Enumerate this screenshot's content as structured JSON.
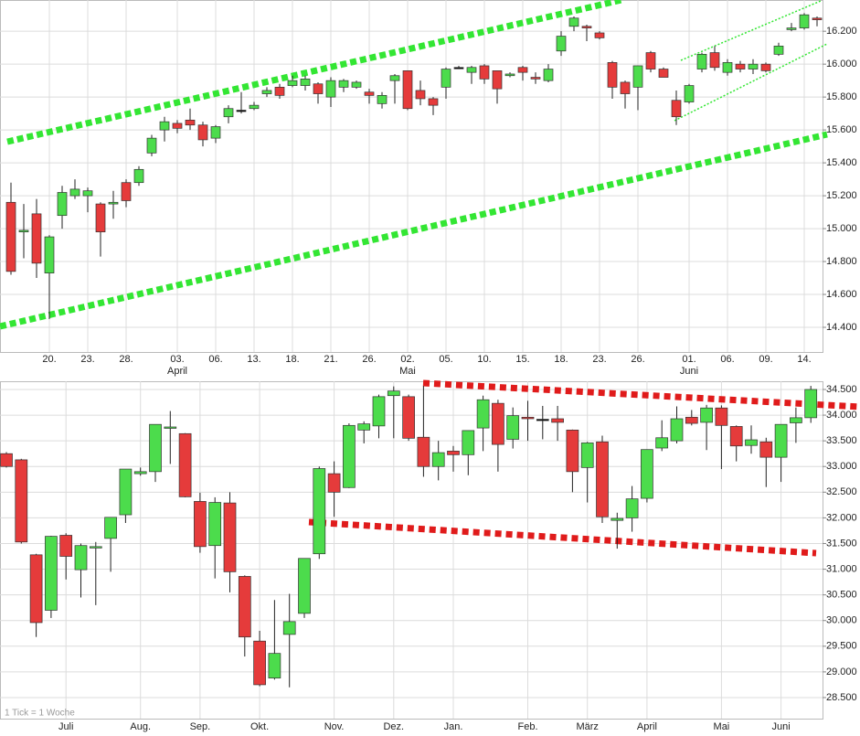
{
  "chart_data": [
    {
      "type": "candlestick",
      "categories": [
        null,
        null,
        null,
        "20.",
        null,
        null,
        "23.",
        null,
        null,
        "28.",
        null,
        null,
        null,
        "03.",
        null,
        null,
        "06.",
        null,
        null,
        "13.",
        null,
        null,
        "18.",
        null,
        null,
        "21.",
        null,
        null,
        "26.",
        null,
        null,
        "02.",
        null,
        null,
        "05.",
        null,
        null,
        "10.",
        null,
        null,
        "15.",
        null,
        null,
        "18.",
        null,
        null,
        "23.",
        null,
        null,
        "26.",
        null,
        null,
        null,
        "01.",
        null,
        null,
        "06.",
        null,
        null,
        "09.",
        null,
        null,
        "14.",
        null
      ],
      "category_groups": [
        null,
        null,
        null,
        null,
        null,
        null,
        null,
        null,
        null,
        null,
        null,
        null,
        null,
        "April",
        null,
        null,
        null,
        null,
        null,
        null,
        null,
        null,
        null,
        null,
        null,
        null,
        null,
        null,
        null,
        null,
        null,
        "Mai",
        null,
        null,
        null,
        null,
        null,
        null,
        null,
        null,
        null,
        null,
        null,
        null,
        null,
        null,
        null,
        null,
        null,
        null,
        null,
        null,
        null,
        "Juni",
        null,
        null,
        null,
        null,
        null,
        null,
        null,
        null,
        null,
        null
      ],
      "open": [
        15160,
        14980,
        15090,
        14730,
        15080,
        15200,
        15200,
        15150,
        15150,
        15280,
        15280,
        15460,
        15600,
        15640,
        15660,
        15630,
        15550,
        15680,
        15720,
        15730,
        15820,
        15860,
        15870,
        15870,
        15880,
        15800,
        15860,
        15860,
        15830,
        15760,
        15900,
        15960,
        15840,
        15790,
        15860,
        15980,
        15950,
        15990,
        15960,
        15930,
        15980,
        15920,
        15900,
        16080,
        16230,
        16230,
        16190,
        16010,
        15890,
        15860,
        16070,
        15970,
        15780,
        15770,
        15970,
        16070,
        15950,
        16000,
        15970,
        16000,
        16060,
        16210,
        16220,
        16280
      ],
      "high": [
        15280,
        15150,
        15180,
        14960,
        15260,
        15300,
        15250,
        15160,
        15230,
        15300,
        15380,
        15570,
        15680,
        15660,
        15730,
        15650,
        15630,
        15750,
        15830,
        15770,
        15860,
        15880,
        15930,
        15930,
        15890,
        15920,
        15910,
        15900,
        15850,
        15830,
        15940,
        15960,
        15900,
        15800,
        15980,
        15990,
        15990,
        16000,
        15960,
        15950,
        15990,
        15950,
        16000,
        16200,
        16290,
        16240,
        16200,
        16020,
        15900,
        15990,
        16080,
        15980,
        15840,
        15880,
        16070,
        16110,
        16030,
        16020,
        16030,
        16010,
        16130,
        16250,
        16310,
        16290
      ],
      "low": [
        14720,
        14820,
        14700,
        14450,
        15000,
        15180,
        15100,
        14830,
        15060,
        15130,
        15260,
        15440,
        15530,
        15580,
        15600,
        15500,
        15520,
        15640,
        15700,
        15720,
        15800,
        15790,
        15860,
        15840,
        15760,
        15740,
        15830,
        15850,
        15760,
        15730,
        15760,
        15720,
        15750,
        15690,
        15790,
        15970,
        15880,
        15880,
        15760,
        15920,
        15900,
        15880,
        15890,
        16050,
        16200,
        16140,
        16150,
        15790,
        15730,
        15720,
        15950,
        15920,
        15630,
        15760,
        15950,
        15960,
        15930,
        15950,
        15940,
        15950,
        16050,
        16200,
        16210,
        16230
      ],
      "close": [
        14740,
        14990,
        14790,
        14950,
        15220,
        15240,
        15230,
        14980,
        15160,
        15170,
        15360,
        15550,
        15650,
        15610,
        15630,
        15540,
        15620,
        15730,
        15720,
        15750,
        15840,
        15810,
        15900,
        15910,
        15820,
        15900,
        15900,
        15890,
        15810,
        15810,
        15930,
        15730,
        15790,
        15750,
        15970,
        15980,
        15980,
        15910,
        15850,
        15940,
        15950,
        15910,
        15970,
        16170,
        16280,
        16220,
        16160,
        15860,
        15820,
        15990,
        15970,
        15920,
        15680,
        15870,
        16060,
        15980,
        16010,
        15970,
        16000,
        15960,
        16110,
        16220,
        16300,
        16270
      ],
      "colors": {
        "up": "#4cdc4c",
        "down": "#e53b3b",
        "doji": "#000000"
      },
      "ylim": [
        14250,
        16390
      ],
      "yticks": [
        {
          "value": 14400,
          "label": "14.400"
        },
        {
          "value": 14600,
          "label": "14.600"
        },
        {
          "value": 14800,
          "label": "14.800"
        },
        {
          "value": 15000,
          "label": "15.000"
        },
        {
          "value": 15200,
          "label": "15.200"
        },
        {
          "value": 15400,
          "label": "15.400"
        },
        {
          "value": 15600,
          "label": "15.600"
        },
        {
          "value": 15800,
          "label": "15.800"
        },
        {
          "value": 16000,
          "label": "16.000"
        },
        {
          "value": 16200,
          "label": "16.200"
        }
      ],
      "grid": true
    },
    {
      "type": "candlestick",
      "annotation": "1 Tick = 1 Woche",
      "categories": [
        null,
        null,
        null,
        null,
        "Juli",
        null,
        null,
        null,
        null,
        "Aug.",
        null,
        null,
        null,
        "Sep.",
        null,
        null,
        null,
        "Okt.",
        null,
        null,
        null,
        null,
        "Nov.",
        null,
        null,
        null,
        "Dez.",
        null,
        null,
        null,
        "Jan.",
        null,
        null,
        null,
        null,
        "Feb.",
        null,
        null,
        null,
        "März",
        null,
        null,
        null,
        "April",
        null,
        null,
        null,
        null,
        "Mai",
        null,
        null,
        null,
        "Juni",
        null,
        null
      ],
      "open": [
        33250,
        33130,
        31280,
        30200,
        31660,
        30990,
        31420,
        31600,
        32060,
        32860,
        32900,
        33750,
        33640,
        32320,
        31460,
        32290,
        30860,
        29600,
        28880,
        29730,
        30140,
        31300,
        32860,
        32590,
        33710,
        33790,
        34380,
        34360,
        33570,
        33000,
        33300,
        33230,
        33750,
        34230,
        33530,
        33960,
        33920,
        33930,
        33710,
        32980,
        33480,
        31950,
        32000,
        32380,
        33360,
        33500,
        33960,
        33860,
        34140,
        33780,
        33410,
        33480,
        33180,
        33850,
        33950
      ],
      "high": [
        33280,
        33150,
        31300,
        31650,
        31700,
        31500,
        31530,
        32010,
        32950,
        32980,
        33820,
        34080,
        33650,
        32490,
        32400,
        32500,
        30880,
        29800,
        30400,
        30520,
        31210,
        33000,
        33100,
        33840,
        33880,
        34400,
        34560,
        34400,
        34570,
        33500,
        33400,
        33700,
        34380,
        34300,
        34150,
        34280,
        34180,
        34180,
        33720,
        33480,
        33600,
        32100,
        32620,
        33330,
        33900,
        34170,
        34100,
        34200,
        34190,
        33800,
        33800,
        33560,
        33820,
        34150,
        34570
      ],
      "low": [
        32980,
        31500,
        29680,
        30050,
        30800,
        30450,
        30300,
        30950,
        31900,
        32820,
        32700,
        33050,
        32400,
        31320,
        30820,
        30550,
        29300,
        28720,
        28850,
        28700,
        30050,
        31200,
        32020,
        32580,
        33450,
        33550,
        33550,
        33500,
        32800,
        32730,
        32900,
        32830,
        33300,
        32900,
        33350,
        33500,
        33530,
        33500,
        32500,
        32300,
        31900,
        31400,
        31730,
        32300,
        33300,
        33450,
        33800,
        33320,
        32950,
        33100,
        33250,
        32600,
        32700,
        33460,
        33850
      ],
      "close": [
        33000,
        31530,
        29960,
        31640,
        31250,
        31460,
        31440,
        32010,
        32950,
        32900,
        33820,
        33770,
        32410,
        31440,
        32300,
        30950,
        29680,
        28750,
        29360,
        29980,
        31210,
        32960,
        32500,
        33800,
        33830,
        34360,
        34470,
        33550,
        33000,
        33270,
        33230,
        33700,
        34300,
        33430,
        33990,
        33930,
        33920,
        33860,
        32900,
        33460,
        32020,
        31990,
        32370,
        33330,
        33560,
        33930,
        33840,
        34140,
        33800,
        33400,
        33520,
        33180,
        33820,
        33950,
        34500
      ],
      "colors": {
        "up": "#4cdc4c",
        "down": "#e53b3b",
        "doji": "#000000"
      },
      "ylim": [
        28090,
        34660
      ],
      "yticks": [
        {
          "value": 28500,
          "label": "28.500"
        },
        {
          "value": 29000,
          "label": "29.000"
        },
        {
          "value": 29500,
          "label": "29.500"
        },
        {
          "value": 30000,
          "label": "30.000"
        },
        {
          "value": 30500,
          "label": "30.500"
        },
        {
          "value": 31000,
          "label": "31.000"
        },
        {
          "value": 31500,
          "label": "31.500"
        },
        {
          "value": 32000,
          "label": "32.000"
        },
        {
          "value": 32500,
          "label": "32.500"
        },
        {
          "value": 33000,
          "label": "33.000"
        },
        {
          "value": 33500,
          "label": "33.500"
        },
        {
          "value": 34000,
          "label": "34.000"
        },
        {
          "value": 34500,
          "label": "34.500"
        }
      ],
      "grid": true
    }
  ]
}
